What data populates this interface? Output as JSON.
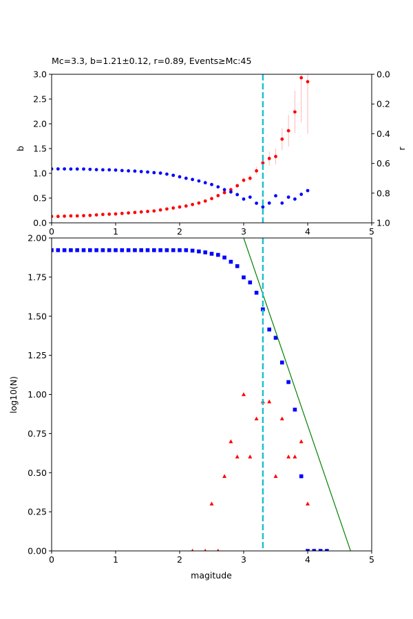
{
  "colors": {
    "red": "#ff0000",
    "blue": "#0000ff",
    "cyan": "#17becf",
    "green": "#008000",
    "errorbar": "#ffb6b6"
  },
  "chart_data": [
    {
      "type": "scatter",
      "title": "Mc=3.3, b=1.21±0.12, r=0.89, Events≥Mc:45",
      "xlabel": "",
      "ylabel": "b",
      "y2label": "r",
      "xlim": [
        0,
        5
      ],
      "ylim": [
        0,
        3
      ],
      "y2lim": [
        1,
        0
      ],
      "xticks": [
        "0",
        "1",
        "2",
        "3",
        "4",
        "5"
      ],
      "yticks": [
        "0.0",
        "0.5",
        "1.0",
        "1.5",
        "2.0",
        "2.5",
        "3.0"
      ],
      "y2ticks": [
        "0.0",
        "0.2",
        "0.4",
        "0.6",
        "0.8",
        "1.0"
      ],
      "mc_line": 3.3,
      "grid": false,
      "series": [
        {
          "color": "red",
          "axis": "left",
          "x": [
            0.0,
            0.1,
            0.2,
            0.3,
            0.4,
            0.5,
            0.6,
            0.7,
            0.8,
            0.9,
            1.0,
            1.1,
            1.2,
            1.3,
            1.4,
            1.5,
            1.6,
            1.7,
            1.8,
            1.9,
            2.0,
            2.1,
            2.2,
            2.3,
            2.4,
            2.5,
            2.6,
            2.7,
            2.8,
            2.9,
            3.0,
            3.1,
            3.2,
            3.3,
            3.4,
            3.5,
            3.6,
            3.7,
            3.8,
            3.9,
            4.0
          ],
          "y": [
            0.13,
            0.13,
            0.135,
            0.14,
            0.14,
            0.145,
            0.15,
            0.16,
            0.17,
            0.175,
            0.18,
            0.19,
            0.2,
            0.21,
            0.22,
            0.23,
            0.24,
            0.26,
            0.28,
            0.3,
            0.32,
            0.34,
            0.37,
            0.4,
            0.44,
            0.49,
            0.55,
            0.61,
            0.67,
            0.75,
            0.86,
            0.9,
            1.05,
            1.21,
            1.3,
            1.34,
            1.69,
            1.86,
            2.24,
            2.93,
            2.85
          ],
          "err": [
            0,
            0,
            0,
            0,
            0,
            0,
            0,
            0,
            0,
            0,
            0,
            0,
            0,
            0,
            0,
            0,
            0,
            0,
            0,
            0,
            0,
            0,
            0,
            0,
            0,
            0,
            0,
            0.02,
            0.03,
            0.04,
            0.05,
            0.06,
            0.08,
            0.12,
            0.14,
            0.16,
            0.22,
            0.32,
            0.43,
            0.9,
            1.05
          ]
        },
        {
          "color": "blue",
          "axis": "right",
          "x": [
            0.0,
            0.1,
            0.2,
            0.3,
            0.4,
            0.5,
            0.6,
            0.7,
            0.8,
            0.9,
            1.0,
            1.1,
            1.2,
            1.3,
            1.4,
            1.5,
            1.6,
            1.7,
            1.8,
            1.9,
            2.0,
            2.1,
            2.2,
            2.3,
            2.4,
            2.5,
            2.6,
            2.7,
            2.8,
            2.9,
            3.0,
            3.1,
            3.2,
            3.3,
            3.4,
            3.5,
            3.6,
            3.7,
            3.8,
            3.9,
            4.0
          ],
          "y": [
            0.637,
            0.637,
            0.637,
            0.638,
            0.638,
            0.638,
            0.64,
            0.642,
            0.643,
            0.643,
            0.645,
            0.648,
            0.65,
            0.652,
            0.655,
            0.658,
            0.662,
            0.665,
            0.672,
            0.68,
            0.69,
            0.7,
            0.708,
            0.718,
            0.73,
            0.742,
            0.758,
            0.777,
            0.792,
            0.81,
            0.84,
            0.827,
            0.868,
            0.893,
            0.867,
            0.818,
            0.867,
            0.827,
            0.84,
            0.808,
            0.783
          ]
        }
      ]
    },
    {
      "type": "scatter",
      "title": "",
      "xlabel": "magitude",
      "ylabel": "log10(N)",
      "xlim": [
        0,
        5
      ],
      "ylim": [
        0,
        2
      ],
      "xticks": [
        "0",
        "1",
        "2",
        "3",
        "4",
        "5"
      ],
      "yticks": [
        "0.00",
        "0.25",
        "0.50",
        "0.75",
        "1.00",
        "1.25",
        "1.50",
        "1.75",
        "2.00"
      ],
      "mc_line": 3.3,
      "fit_line": {
        "x": [
          3.0,
          4.67
        ],
        "y": [
          2.0,
          0.0
        ]
      },
      "grid": false,
      "series": [
        {
          "color": "blue",
          "marker": "square",
          "x": [
            0.0,
            0.1,
            0.2,
            0.3,
            0.4,
            0.5,
            0.6,
            0.7,
            0.8,
            0.9,
            1.0,
            1.1,
            1.2,
            1.3,
            1.4,
            1.5,
            1.6,
            1.7,
            1.8,
            1.9,
            2.0,
            2.1,
            2.2,
            2.3,
            2.4,
            2.5,
            2.6,
            2.7,
            2.8,
            2.9,
            3.0,
            3.1,
            3.2,
            3.3,
            3.4,
            3.5,
            3.6,
            3.7,
            3.8,
            3.9,
            4.0,
            4.1,
            4.2,
            4.3
          ],
          "y": [
            1.922,
            1.922,
            1.922,
            1.922,
            1.922,
            1.922,
            1.922,
            1.922,
            1.922,
            1.922,
            1.922,
            1.922,
            1.922,
            1.922,
            1.922,
            1.922,
            1.922,
            1.922,
            1.922,
            1.922,
            1.922,
            1.922,
            1.919,
            1.914,
            1.908,
            1.899,
            1.892,
            1.875,
            1.848,
            1.82,
            1.748,
            1.716,
            1.65,
            1.544,
            1.415,
            1.362,
            1.204,
            1.079,
            0.903,
            0.477,
            0.0,
            0.0,
            0.0,
            0.0
          ]
        },
        {
          "color": "red",
          "marker": "triangle",
          "x": [
            2.2,
            2.4,
            2.5,
            2.6,
            2.7,
            2.8,
            2.9,
            3.0,
            3.1,
            3.2,
            3.3,
            3.4,
            3.5,
            3.6,
            3.7,
            3.8,
            3.9,
            4.0
          ],
          "y": [
            0.0,
            0.0,
            0.301,
            0.0,
            0.477,
            0.699,
            0.602,
            1.0,
            0.602,
            0.845,
            0.954,
            0.954,
            0.477,
            0.845,
            0.602,
            0.602,
            0.699,
            0.301
          ]
        }
      ]
    }
  ]
}
